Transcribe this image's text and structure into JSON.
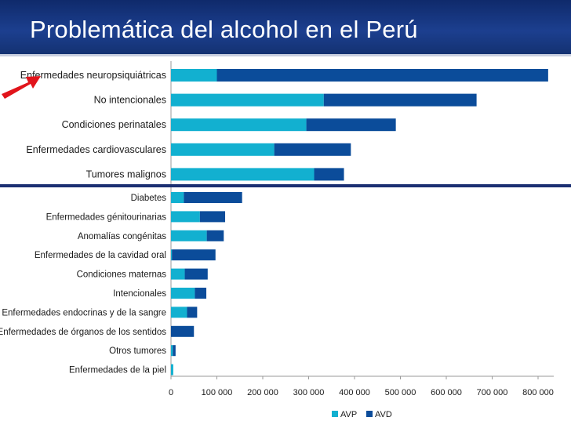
{
  "header": {
    "title": "Problemática del alcohol en el Perú"
  },
  "colors": {
    "avp": "#12b0d0",
    "avd": "#0b4c9a",
    "header": "#1c3f8f",
    "divider": "#1b2f72",
    "arrow": "#e1141b"
  },
  "chart_data": {
    "type": "bar",
    "orientation": "horizontal",
    "stacked": true,
    "title": "",
    "xlabel": "",
    "ylabel": "",
    "xlim": [
      0,
      800000
    ],
    "xticks": [
      "0",
      "100 000",
      "200 000",
      "300 000",
      "400 000",
      "500 000",
      "600 000",
      "700 000",
      "800 000"
    ],
    "legend_position": "bottom",
    "categories": [
      "Enfermedades neuropsiquiátricas",
      "No intencionales",
      "Condiciones perinatales",
      "Enfermedades cardiovasculares",
      "Tumores malignos",
      "Diabetes",
      "Enfermedades génitourinarias",
      "Anomalías congénitas",
      "Enfermedades de la cavidad oral",
      "Condiciones maternas",
      "Intencionales",
      "Enfermedades endocrinas y de la sangre",
      "Enfermedades de órganos de los sentidos",
      "Otros tumores",
      "Enfermedades de la piel"
    ],
    "series": [
      {
        "name": "AVP",
        "values": [
          100000,
          333000,
          295000,
          225000,
          312000,
          28000,
          63000,
          78000,
          2000,
          30000,
          52000,
          35000,
          0,
          4000,
          5000
        ]
      },
      {
        "name": "AVD",
        "values": [
          722000,
          333000,
          195000,
          167000,
          65000,
          127000,
          55000,
          37000,
          95000,
          50000,
          25000,
          22000,
          50000,
          6000,
          0
        ]
      }
    ]
  }
}
